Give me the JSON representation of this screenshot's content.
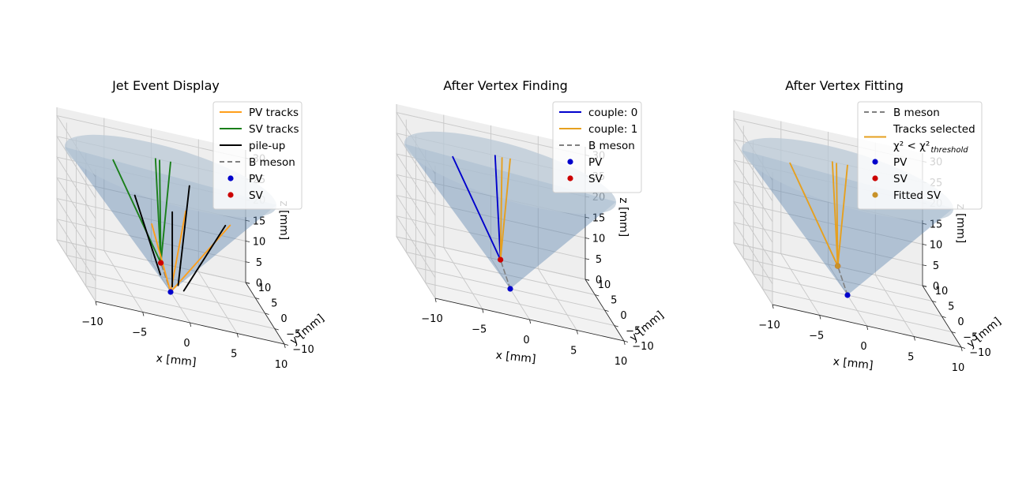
{
  "chart_data": [
    {
      "type": "scatter",
      "subtype": "3d",
      "title": "Jet Event Display",
      "xlabel": "x [mm]",
      "ylabel": "y [mm]",
      "zlabel": "z [mm]",
      "xlim": [
        -10,
        10
      ],
      "ylim": [
        -10,
        10
      ],
      "zlim": [
        0,
        30
      ],
      "xticks": [
        "−10",
        "−5",
        "0",
        "5",
        "10"
      ],
      "yticks": [
        "−10",
        "−5",
        "0",
        "5",
        "10"
      ],
      "zticks": [
        "0",
        "5",
        "10",
        "15",
        "20",
        "25",
        "30"
      ],
      "grid": true,
      "legend_position": "top-right",
      "colors": {
        "pv_tracks": "#ff9f1a",
        "sv_tracks": "#1a7f1a",
        "pileup": "#000000",
        "bmeson": "#808080",
        "pv": "#0000cc",
        "sv": "#cc0000",
        "cone": "#5b84ad"
      },
      "legend": [
        {
          "label": "PV tracks",
          "kind": "line",
          "color": "#ff9f1a"
        },
        {
          "label": "SV tracks",
          "kind": "line",
          "color": "#1a7f1a"
        },
        {
          "label": "pile-up",
          "kind": "line",
          "color": "#000000"
        },
        {
          "label": "B meson",
          "kind": "dash",
          "color": "#808080"
        },
        {
          "label": "PV",
          "kind": "dot",
          "color": "#0000cc"
        },
        {
          "label": "SV",
          "kind": "dot",
          "color": "#cc0000"
        }
      ],
      "points": [
        {
          "name": "PV",
          "x": 0,
          "y": 0,
          "z": 0,
          "color": "#0000cc"
        },
        {
          "name": "SV",
          "x": -1.2,
          "y": -0.8,
          "z": 7,
          "color": "#cc0000"
        }
      ],
      "tracks": [
        {
          "series": "B meson",
          "from": [
            0,
            0,
            0
          ],
          "to": [
            -1.2,
            -0.8,
            7
          ],
          "color": "#808080",
          "dash": true
        },
        {
          "series": "SV tracks",
          "from": [
            -1.2,
            -0.8,
            7
          ],
          "to": [
            -6.5,
            -2.0,
            30
          ],
          "color": "#1a7f1a"
        },
        {
          "series": "SV tracks",
          "from": [
            -1.2,
            -0.8,
            7
          ],
          "to": [
            -1.5,
            0.5,
            31
          ],
          "color": "#1a7f1a"
        },
        {
          "series": "SV tracks",
          "from": [
            -1.2,
            -0.8,
            7
          ],
          "to": [
            -0.8,
            1.8,
            30
          ],
          "color": "#1a7f1a"
        },
        {
          "series": "SV tracks",
          "from": [
            -1.2,
            -0.8,
            7
          ],
          "to": [
            0.1,
            0.5,
            31
          ],
          "color": "#1a7f1a"
        },
        {
          "series": "PV tracks",
          "from": [
            0,
            0,
            0
          ],
          "to": [
            -2.2,
            -1.0,
            16
          ],
          "color": "#ff9f1a"
        },
        {
          "series": "PV tracks",
          "from": [
            0,
            0,
            0
          ],
          "to": [
            1.7,
            0.5,
            20
          ],
          "color": "#ff9f1a"
        },
        {
          "series": "PV tracks",
          "from": [
            0,
            0,
            0
          ],
          "to": [
            6.4,
            0.5,
            19
          ],
          "color": "#ff9f1a"
        },
        {
          "series": "pile-up",
          "from": [
            -1.2,
            -0.6,
            4
          ],
          "to": [
            -4.0,
            -1.0,
            22
          ],
          "color": "#000000"
        },
        {
          "series": "pile-up",
          "from": [
            0.3,
            0.6,
            1
          ],
          "to": [
            0.3,
            0.6,
            19
          ],
          "color": "#000000"
        },
        {
          "series": "pile-up",
          "from": [
            0.8,
            0.0,
            2
          ],
          "to": [
            2.2,
            1.0,
            26
          ],
          "color": "#000000"
        },
        {
          "series": "pile-up",
          "from": [
            1.4,
            0.0,
            1
          ],
          "to": [
            5.8,
            0.0,
            19
          ],
          "color": "#000000"
        }
      ]
    },
    {
      "type": "scatter",
      "subtype": "3d",
      "title": "After Vertex Finding",
      "xlabel": "x [mm]",
      "ylabel": "y [mm]",
      "zlabel": "z [mm]",
      "xlim": [
        -10,
        10
      ],
      "ylim": [
        -10,
        10
      ],
      "zlim": [
        0,
        30
      ],
      "xticks": [
        "−10",
        "−5",
        "0",
        "5",
        "10"
      ],
      "yticks": [
        "−10",
        "−5",
        "0",
        "5",
        "10"
      ],
      "zticks": [
        "0",
        "5",
        "10",
        "15",
        "20",
        "25",
        "30"
      ],
      "grid": true,
      "legend_position": "top-right",
      "colors": {
        "couple0": "#0000cc",
        "couple1": "#e6a01f",
        "bmeson": "#808080",
        "pv": "#0000cc",
        "sv": "#cc0000",
        "cone": "#5b84ad"
      },
      "legend": [
        {
          "label": "couple: 0",
          "kind": "line",
          "color": "#0000cc"
        },
        {
          "label": "couple: 1",
          "kind": "line",
          "color": "#e6a01f"
        },
        {
          "label": "B meson",
          "kind": "dash",
          "color": "#808080"
        },
        {
          "label": "PV",
          "kind": "dot",
          "color": "#0000cc"
        },
        {
          "label": "SV",
          "kind": "dot",
          "color": "#cc0000"
        }
      ],
      "points": [
        {
          "name": "PV",
          "x": 0,
          "y": 0,
          "z": 0,
          "color": "#0000cc"
        },
        {
          "name": "SV",
          "x": -1.2,
          "y": -0.8,
          "z": 7,
          "color": "#cc0000"
        }
      ],
      "tracks": [
        {
          "series": "B meson",
          "from": [
            0,
            0,
            0
          ],
          "to": [
            -1.2,
            -0.8,
            7
          ],
          "color": "#808080",
          "dash": true
        },
        {
          "series": "couple: 0",
          "from": [
            -1.2,
            -0.8,
            7
          ],
          "to": [
            -6.5,
            -2.0,
            30
          ],
          "color": "#0000cc"
        },
        {
          "series": "couple: 0",
          "from": [
            -1.2,
            -0.8,
            7
          ],
          "to": [
            -1.5,
            0.5,
            31
          ],
          "color": "#0000cc"
        },
        {
          "series": "couple: 1",
          "from": [
            -1.2,
            -0.8,
            7
          ],
          "to": [
            -0.5,
            1.8,
            30
          ],
          "color": "#e6a01f"
        },
        {
          "series": "couple: 1",
          "from": [
            -1.2,
            -0.8,
            7
          ],
          "to": [
            0.1,
            0.5,
            31
          ],
          "color": "#e6a01f"
        }
      ]
    },
    {
      "type": "scatter",
      "subtype": "3d",
      "title": "After Vertex Fitting",
      "xlabel": "x [mm]",
      "ylabel": "y [mm]",
      "zlabel": "z [mm]",
      "xlim": [
        -10,
        10
      ],
      "ylim": [
        -10,
        10
      ],
      "zlim": [
        0,
        30
      ],
      "xticks": [
        "−10",
        "−5",
        "0",
        "5",
        "10"
      ],
      "yticks": [
        "−10",
        "−5",
        "0",
        "5",
        "10"
      ],
      "zticks": [
        "0",
        "5",
        "10",
        "15",
        "20",
        "25",
        "30"
      ],
      "grid": true,
      "legend_position": "top-right",
      "colors": {
        "selected": "#e6a01f",
        "bmeson": "#808080",
        "pv": "#0000cc",
        "sv": "#cc0000",
        "fitted": "#c8922a",
        "cone": "#5b84ad"
      },
      "legend": [
        {
          "label": "B meson",
          "kind": "dash",
          "color": "#808080"
        },
        {
          "label": "Tracks selected",
          "kind": "line2",
          "color": "#e6a01f",
          "label_line2": "χ² < χ²",
          "label_sub": "threshold"
        },
        {
          "label": "PV",
          "kind": "dot",
          "color": "#0000cc"
        },
        {
          "label": "SV",
          "kind": "dot",
          "color": "#cc0000"
        },
        {
          "label": "Fitted SV",
          "kind": "dot",
          "color": "#c8922a"
        }
      ],
      "points": [
        {
          "name": "PV",
          "x": 0,
          "y": 0,
          "z": 0,
          "color": "#0000cc"
        },
        {
          "name": "SV",
          "x": -1.2,
          "y": -0.8,
          "z": 7,
          "color": "#cc0000"
        },
        {
          "name": "Fitted SV",
          "x": -1.2,
          "y": -0.8,
          "z": 7,
          "color": "#c8922a"
        }
      ],
      "tracks": [
        {
          "series": "B meson",
          "from": [
            0,
            0,
            0
          ],
          "to": [
            -1.2,
            -0.8,
            7
          ],
          "color": "#808080",
          "dash": true
        },
        {
          "series": "Tracks selected",
          "from": [
            -1.2,
            -0.8,
            7
          ],
          "to": [
            -6.5,
            -2.0,
            30
          ],
          "color": "#e6a01f"
        },
        {
          "series": "Tracks selected",
          "from": [
            -1.2,
            -0.8,
            7
          ],
          "to": [
            -1.5,
            0.5,
            31
          ],
          "color": "#e6a01f"
        },
        {
          "series": "Tracks selected",
          "from": [
            -1.2,
            -0.8,
            7
          ],
          "to": [
            -0.8,
            1.8,
            30
          ],
          "color": "#e6a01f"
        },
        {
          "series": "Tracks selected",
          "from": [
            -1.2,
            -0.8,
            7
          ],
          "to": [
            0.1,
            0.5,
            31
          ],
          "color": "#e6a01f"
        }
      ]
    }
  ]
}
